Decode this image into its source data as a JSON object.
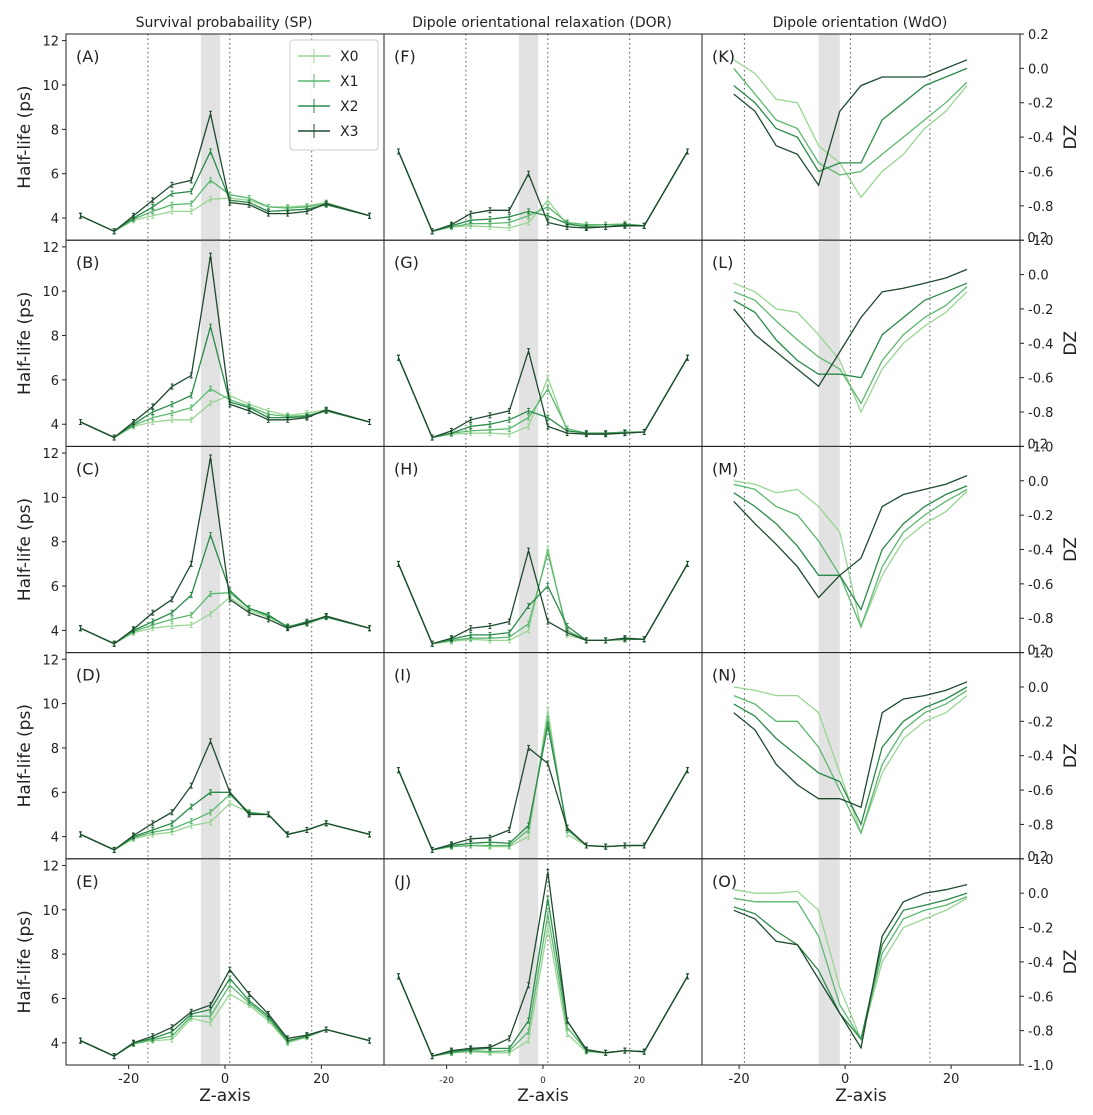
{
  "chart_data": {
    "type": "line",
    "column_titles": [
      "Survival probabaility (SP)",
      "Dipole orientational relaxation (DOR)",
      "Dipole orientation (WdO)"
    ],
    "series_names": [
      "X0",
      "X1",
      "X2",
      "X3"
    ],
    "series_colors": [
      "#99d594",
      "#5cb870",
      "#2a8a49",
      "#1f4a2e"
    ],
    "xlabel": "Z-axis",
    "ylabel_left": "Half-life (ps)",
    "ylabel_right": "D_Z",
    "ylabel_right_display": "DZ",
    "left_axis": {
      "ylim": [
        3,
        12.3
      ],
      "ticks": [
        "4",
        "6",
        "8",
        "10",
        "12"
      ]
    },
    "right_axis": {
      "ylim": [
        -1.0,
        0.2
      ],
      "ticks": [
        "0.2",
        "0.0",
        "-0.2",
        "-0.4",
        "-0.6",
        "-0.8",
        "-1.0"
      ]
    },
    "sp_dor_xlim": [
      -33,
      33
    ],
    "wdo_xlim": [
      -27,
      33
    ],
    "x_ticks": [
      "-20",
      "0",
      "20"
    ],
    "shaded_region": [
      -5,
      -1
    ],
    "dotted_lines": {
      "sp": [
        -16,
        1,
        18
      ],
      "dor": [
        -16,
        1,
        18
      ],
      "wdo": [
        -19,
        1,
        16
      ]
    },
    "z_sp_dor": [
      -30,
      -23,
      -19,
      -15,
      -11,
      -7,
      -3,
      1,
      5,
      9,
      13,
      17,
      21,
      30
    ],
    "z_wdo": [
      -21,
      -17,
      -13,
      -9,
      -5,
      -1,
      3,
      7,
      11,
      15,
      19,
      23
    ],
    "rows": [
      {
        "tags": [
          "(A)",
          "(F)",
          "(K)"
        ],
        "sp": [
          [
            4.1,
            3.4,
            3.9,
            4.1,
            4.3,
            4.3,
            4.85,
            4.9,
            4.8,
            4.5,
            4.5,
            4.55,
            4.7,
            4.1
          ],
          [
            4.1,
            3.4,
            3.95,
            4.3,
            4.6,
            4.65,
            5.7,
            5.05,
            4.9,
            4.5,
            4.45,
            4.5,
            4.65,
            4.1
          ],
          [
            4.1,
            3.4,
            4.0,
            4.5,
            5.1,
            5.2,
            7.0,
            4.8,
            4.7,
            4.3,
            4.35,
            4.4,
            4.6,
            4.1
          ],
          [
            4.1,
            3.4,
            4.1,
            4.8,
            5.5,
            5.7,
            8.7,
            4.7,
            4.6,
            4.2,
            4.2,
            4.3,
            4.65,
            4.1
          ]
        ],
        "dor": [
          [
            7.0,
            3.4,
            3.6,
            3.65,
            3.6,
            3.55,
            3.8,
            4.8,
            3.7,
            3.65,
            3.7,
            3.75,
            3.65,
            7.0
          ],
          [
            7.0,
            3.4,
            3.6,
            3.75,
            3.75,
            3.8,
            4.1,
            4.5,
            3.8,
            3.7,
            3.7,
            3.7,
            3.65,
            7.0
          ],
          [
            7.0,
            3.4,
            3.65,
            3.9,
            3.95,
            4.05,
            4.3,
            4.1,
            3.75,
            3.6,
            3.6,
            3.7,
            3.65,
            7.0
          ],
          [
            7.0,
            3.4,
            3.7,
            4.2,
            4.35,
            4.35,
            6.0,
            3.8,
            3.6,
            3.55,
            3.6,
            3.65,
            3.65,
            7.0
          ]
        ],
        "wdo": [
          [
            0.05,
            -0.03,
            -0.18,
            -0.2,
            -0.45,
            -0.55,
            -0.75,
            -0.6,
            -0.5,
            -0.35,
            -0.25,
            -0.1
          ],
          [
            0.0,
            -0.15,
            -0.3,
            -0.35,
            -0.55,
            -0.62,
            -0.6,
            -0.5,
            -0.4,
            -0.3,
            -0.2,
            -0.08
          ],
          [
            -0.1,
            -0.2,
            -0.35,
            -0.4,
            -0.6,
            -0.55,
            -0.55,
            -0.3,
            -0.2,
            -0.1,
            -0.05,
            0.0
          ],
          [
            -0.15,
            -0.25,
            -0.45,
            -0.5,
            -0.68,
            -0.25,
            -0.1,
            -0.05,
            -0.05,
            -0.05,
            0.0,
            0.05
          ]
        ]
      },
      {
        "tags": [
          "(B)",
          "(G)",
          "(L)"
        ],
        "sp": [
          [
            4.1,
            3.4,
            3.9,
            4.1,
            4.2,
            4.2,
            4.95,
            5.3,
            4.9,
            4.6,
            4.4,
            4.5,
            4.65,
            4.1
          ],
          [
            4.1,
            3.4,
            3.95,
            4.3,
            4.5,
            4.75,
            5.6,
            5.1,
            4.8,
            4.45,
            4.35,
            4.4,
            4.6,
            4.1
          ],
          [
            4.1,
            3.4,
            4.0,
            4.55,
            4.9,
            5.3,
            8.4,
            5.0,
            4.75,
            4.3,
            4.3,
            4.35,
            4.6,
            4.1
          ],
          [
            4.1,
            3.4,
            4.1,
            4.8,
            5.7,
            6.2,
            11.6,
            4.9,
            4.6,
            4.2,
            4.2,
            4.3,
            4.65,
            4.1
          ]
        ],
        "dor": [
          [
            7.0,
            3.4,
            3.55,
            3.6,
            3.6,
            3.55,
            3.9,
            6.1,
            3.7,
            3.6,
            3.6,
            3.65,
            3.65,
            7.0
          ],
          [
            7.0,
            3.4,
            3.6,
            3.7,
            3.75,
            3.8,
            4.3,
            5.6,
            3.8,
            3.6,
            3.6,
            3.65,
            3.65,
            7.0
          ],
          [
            7.0,
            3.4,
            3.6,
            3.9,
            4.0,
            4.2,
            4.6,
            4.3,
            3.7,
            3.6,
            3.6,
            3.6,
            3.65,
            7.0
          ],
          [
            7.0,
            3.4,
            3.7,
            4.2,
            4.4,
            4.6,
            7.3,
            3.9,
            3.6,
            3.55,
            3.55,
            3.6,
            3.65,
            7.0
          ]
        ],
        "wdo": [
          [
            -0.05,
            -0.1,
            -0.2,
            -0.22,
            -0.35,
            -0.5,
            -0.8,
            -0.55,
            -0.4,
            -0.3,
            -0.22,
            -0.1
          ],
          [
            -0.1,
            -0.15,
            -0.27,
            -0.38,
            -0.48,
            -0.55,
            -0.75,
            -0.5,
            -0.35,
            -0.25,
            -0.18,
            -0.07
          ],
          [
            -0.15,
            -0.22,
            -0.38,
            -0.5,
            -0.58,
            -0.58,
            -0.6,
            -0.35,
            -0.25,
            -0.15,
            -0.1,
            -0.05
          ],
          [
            -0.2,
            -0.35,
            -0.45,
            -0.55,
            -0.65,
            -0.45,
            -0.25,
            -0.1,
            -0.08,
            -0.05,
            -0.02,
            0.03
          ]
        ]
      },
      {
        "tags": [
          "(C)",
          "(H)",
          "(M)"
        ],
        "sp": [
          [
            4.1,
            3.4,
            3.9,
            4.1,
            4.2,
            4.25,
            4.75,
            5.5,
            4.9,
            4.6,
            4.2,
            4.3,
            4.65,
            4.1
          ],
          [
            4.1,
            3.4,
            3.95,
            4.25,
            4.5,
            4.7,
            5.65,
            5.7,
            5.0,
            4.65,
            4.15,
            4.3,
            4.6,
            4.1
          ],
          [
            4.1,
            3.4,
            4.0,
            4.4,
            4.8,
            5.6,
            8.3,
            5.8,
            5.0,
            4.7,
            4.15,
            4.4,
            4.6,
            4.1
          ],
          [
            4.1,
            3.4,
            4.05,
            4.8,
            5.4,
            7.0,
            11.8,
            5.4,
            4.8,
            4.5,
            4.1,
            4.35,
            4.65,
            4.1
          ]
        ],
        "dor": [
          [
            7.0,
            3.4,
            3.5,
            3.6,
            3.55,
            3.55,
            4.0,
            7.7,
            3.8,
            3.55,
            3.55,
            3.6,
            3.6,
            7.0
          ],
          [
            7.0,
            3.4,
            3.55,
            3.65,
            3.65,
            3.7,
            4.3,
            7.5,
            4.0,
            3.55,
            3.55,
            3.6,
            3.6,
            7.0
          ],
          [
            7.0,
            3.4,
            3.6,
            3.8,
            3.8,
            3.9,
            5.1,
            6.0,
            4.2,
            3.55,
            3.55,
            3.6,
            3.6,
            7.0
          ],
          [
            7.0,
            3.4,
            3.65,
            4.1,
            4.2,
            4.4,
            7.6,
            4.4,
            3.9,
            3.55,
            3.55,
            3.65,
            3.6,
            7.0
          ]
        ],
        "wdo": [
          [
            0.0,
            -0.02,
            -0.07,
            -0.05,
            -0.15,
            -0.3,
            -0.85,
            -0.55,
            -0.35,
            -0.25,
            -0.18,
            -0.06
          ],
          [
            -0.02,
            -0.05,
            -0.15,
            -0.2,
            -0.35,
            -0.55,
            -0.85,
            -0.5,
            -0.3,
            -0.2,
            -0.12,
            -0.05
          ],
          [
            -0.07,
            -0.15,
            -0.25,
            -0.38,
            -0.55,
            -0.55,
            -0.75,
            -0.4,
            -0.25,
            -0.15,
            -0.08,
            -0.03
          ],
          [
            -0.12,
            -0.25,
            -0.37,
            -0.5,
            -0.68,
            -0.55,
            -0.45,
            -0.15,
            -0.08,
            -0.05,
            -0.02,
            0.03
          ]
        ]
      },
      {
        "tags": [
          "(D)",
          "(I)",
          "(N)"
        ],
        "sp": [
          [
            4.1,
            3.4,
            3.9,
            4.1,
            4.2,
            4.5,
            4.65,
            5.5,
            5.1,
            5.0,
            4.1,
            4.3,
            4.6,
            4.1
          ],
          [
            4.1,
            3.4,
            3.95,
            4.2,
            4.35,
            4.7,
            5.1,
            5.9,
            5.1,
            5.0,
            4.1,
            4.3,
            4.6,
            4.1
          ],
          [
            4.1,
            3.4,
            4.0,
            4.3,
            4.6,
            5.35,
            6.0,
            6.0,
            5.05,
            5.0,
            4.1,
            4.3,
            4.6,
            4.1
          ],
          [
            4.1,
            3.4,
            4.05,
            4.6,
            5.1,
            6.3,
            8.3,
            6.0,
            5.0,
            5.0,
            4.1,
            4.3,
            4.6,
            4.1
          ]
        ],
        "dor": [
          [
            7.0,
            3.4,
            3.55,
            3.6,
            3.55,
            3.55,
            4.0,
            9.7,
            4.1,
            3.6,
            3.55,
            3.6,
            3.6,
            7.0
          ],
          [
            7.0,
            3.4,
            3.55,
            3.6,
            3.6,
            3.6,
            4.3,
            9.3,
            4.3,
            3.6,
            3.55,
            3.6,
            3.6,
            7.0
          ],
          [
            7.0,
            3.4,
            3.6,
            3.7,
            3.75,
            3.7,
            4.5,
            9.0,
            4.4,
            3.6,
            3.55,
            3.6,
            3.6,
            7.0
          ],
          [
            7.0,
            3.4,
            3.65,
            3.9,
            3.95,
            4.3,
            8.0,
            7.3,
            4.4,
            3.6,
            3.55,
            3.6,
            3.6,
            7.0
          ]
        ],
        "wdo": [
          [
            0.0,
            -0.02,
            -0.05,
            -0.05,
            -0.15,
            -0.5,
            -0.85,
            -0.5,
            -0.3,
            -0.2,
            -0.15,
            -0.05
          ],
          [
            -0.05,
            -0.1,
            -0.2,
            -0.2,
            -0.35,
            -0.6,
            -0.85,
            -0.45,
            -0.25,
            -0.15,
            -0.1,
            -0.02
          ],
          [
            -0.1,
            -0.17,
            -0.3,
            -0.4,
            -0.5,
            -0.55,
            -0.8,
            -0.35,
            -0.2,
            -0.12,
            -0.07,
            0.0
          ],
          [
            -0.15,
            -0.25,
            -0.45,
            -0.57,
            -0.65,
            -0.65,
            -0.7,
            -0.15,
            -0.07,
            -0.05,
            -0.02,
            0.03
          ]
        ]
      },
      {
        "tags": [
          "(E)",
          "(J)",
          "(O)"
        ],
        "sp": [
          [
            4.1,
            3.4,
            3.95,
            4.1,
            4.15,
            5.1,
            4.9,
            6.2,
            5.7,
            5.0,
            4.0,
            4.25,
            4.6,
            4.1
          ],
          [
            4.1,
            3.4,
            3.95,
            4.15,
            4.3,
            5.2,
            5.2,
            6.6,
            5.8,
            5.1,
            4.05,
            4.3,
            4.6,
            4.1
          ],
          [
            4.1,
            3.4,
            4.0,
            4.2,
            4.5,
            5.3,
            5.5,
            6.9,
            5.9,
            5.2,
            4.1,
            4.3,
            4.6,
            4.1
          ],
          [
            4.1,
            3.4,
            4.0,
            4.3,
            4.7,
            5.4,
            5.7,
            7.3,
            6.2,
            5.3,
            4.2,
            4.35,
            4.6,
            4.1
          ]
        ],
        "dor": [
          [
            7.0,
            3.4,
            3.55,
            3.6,
            3.55,
            3.55,
            4.1,
            9.2,
            4.4,
            3.6,
            3.55,
            3.65,
            3.6,
            7.0
          ],
          [
            7.0,
            3.4,
            3.55,
            3.65,
            3.6,
            3.65,
            4.5,
            9.8,
            4.7,
            3.65,
            3.55,
            3.65,
            3.6,
            7.0
          ],
          [
            7.0,
            3.4,
            3.6,
            3.7,
            3.75,
            3.75,
            5.0,
            10.5,
            5.0,
            3.65,
            3.55,
            3.65,
            3.6,
            7.0
          ],
          [
            7.0,
            3.4,
            3.65,
            3.75,
            3.8,
            4.2,
            6.6,
            11.7,
            5.0,
            3.7,
            3.55,
            3.65,
            3.6,
            7.0
          ]
        ],
        "wdo": [
          [
            0.02,
            0.0,
            0.0,
            0.01,
            -0.1,
            -0.55,
            -0.85,
            -0.4,
            -0.2,
            -0.15,
            -0.1,
            -0.03
          ],
          [
            -0.03,
            -0.05,
            -0.05,
            -0.05,
            -0.25,
            -0.65,
            -0.85,
            -0.35,
            -0.15,
            -0.1,
            -0.07,
            -0.02
          ],
          [
            -0.08,
            -0.12,
            -0.22,
            -0.3,
            -0.45,
            -0.7,
            -0.85,
            -0.3,
            -0.1,
            -0.07,
            -0.04,
            0.0
          ],
          [
            -0.1,
            -0.15,
            -0.28,
            -0.3,
            -0.5,
            -0.7,
            -0.9,
            -0.25,
            -0.05,
            0.0,
            0.02,
            0.05
          ]
        ]
      }
    ]
  }
}
